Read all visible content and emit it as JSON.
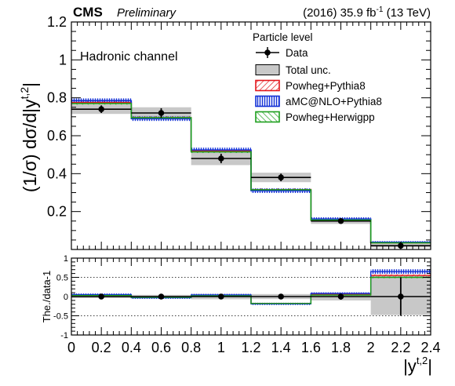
{
  "header": {
    "experiment": "CMS",
    "status": "Preliminary",
    "lumi_prefix": "(2016) 35.9 fb",
    "lumi_exp": "-1",
    "lumi_suffix": " (13 TeV)"
  },
  "channel_label": "Hadronic channel",
  "legend": {
    "title": "Particle level",
    "entries": [
      {
        "key": "data",
        "label": "Data"
      },
      {
        "key": "total_unc",
        "label": "Total unc."
      },
      {
        "key": "powheg_pythia8",
        "label": "Powheg+Pythia8"
      },
      {
        "key": "amcatnlo_pythia8",
        "label": "aMC@NLO+Pythia8"
      },
      {
        "key": "powheg_herwigpp",
        "label": "Powheg+Herwigpp"
      }
    ]
  },
  "colors": {
    "data": "#000000",
    "total_unc": "#c8c8c8",
    "powheg_pythia8": "#e3161c",
    "amcatnlo_pythia8": "#1230d6",
    "powheg_herwigpp": "#1c9e1c"
  },
  "chart_data": {
    "type": "line",
    "x_label_main": "|y",
    "x_label_sup": "t,2",
    "x_label_end": "|",
    "y_label_main": "(1/σ) dσ/d|y",
    "y_label_sup": "t,2",
    "y_label_end": "|",
    "ratio_ylabel": "The./data-1",
    "bin_edges": [
      0,
      0.4,
      0.8,
      1.2,
      1.6,
      2.0,
      2.4
    ],
    "xlim": [
      0,
      2.4
    ],
    "x_ticks": [
      "0",
      "0.2",
      "0.4",
      "0.6",
      "0.8",
      "1",
      "1.2",
      "1.4",
      "1.6",
      "1.8",
      "2",
      "2.2",
      "2.4"
    ],
    "ylim": [
      0,
      1.2
    ],
    "y_ticks": [
      "0.2",
      "0.4",
      "0.6",
      "0.8",
      "1",
      "1.2"
    ],
    "ratio_ylim": [
      -1,
      1
    ],
    "ratio_ticks": [
      "-1",
      "-0.5",
      "0",
      "0.5",
      "1"
    ],
    "data": {
      "x": [
        0.2,
        0.6,
        1.0,
        1.4,
        1.8,
        2.2
      ],
      "y": [
        0.74,
        0.72,
        0.48,
        0.38,
        0.15,
        0.02
      ],
      "stat_err": [
        0.02,
        0.025,
        0.025,
        0.02,
        0.012,
        0.01
      ]
    },
    "total_unc": {
      "low": [
        0.715,
        0.685,
        0.445,
        0.355,
        0.135,
        0.01
      ],
      "high": [
        0.765,
        0.75,
        0.515,
        0.405,
        0.165,
        0.03
      ]
    },
    "series": [
      {
        "name": "Powheg+Pythia8",
        "values": [
          0.775,
          0.695,
          0.52,
          0.315,
          0.155,
          0.035
        ],
        "band_halfwidth": [
          0.008,
          0.008,
          0.008,
          0.008,
          0.006,
          0.004
        ],
        "ratio": [
          0.04,
          -0.02,
          0.03,
          -0.18,
          0.06,
          0.55
        ],
        "ratio_halfwidth": [
          0.015,
          0.015,
          0.015,
          0.015,
          0.015,
          0.03
        ]
      },
      {
        "name": "aMC@NLO+Pythia8",
        "values": [
          0.785,
          0.69,
          0.525,
          0.31,
          0.16,
          0.038
        ],
        "band_halfwidth": [
          0.012,
          0.012,
          0.012,
          0.012,
          0.01,
          0.006
        ],
        "ratio": [
          0.05,
          -0.03,
          0.04,
          -0.19,
          0.08,
          0.65
        ],
        "ratio_halfwidth": [
          0.03,
          0.03,
          0.03,
          0.03,
          0.03,
          0.06
        ]
      },
      {
        "name": "Powheg+Herwigpp",
        "values": [
          0.77,
          0.695,
          0.515,
          0.315,
          0.155,
          0.035
        ],
        "band_halfwidth": [
          0.006,
          0.006,
          0.006,
          0.006,
          0.005,
          0.004
        ],
        "ratio": [
          0.03,
          -0.02,
          0.02,
          -0.18,
          0.04,
          0.5
        ],
        "ratio_halfwidth": [
          0.012,
          0.012,
          0.012,
          0.012,
          0.012,
          0.025
        ]
      }
    ],
    "ratio": {
      "data_err": [
        0.03,
        0.035,
        0.05,
        0.05,
        0.08,
        0.5
      ],
      "total_unc_low": [
        -0.04,
        -0.045,
        -0.07,
        -0.065,
        -0.1,
        -0.48
      ],
      "total_unc_high": [
        0.04,
        0.045,
        0.07,
        0.065,
        0.1,
        0.55
      ]
    }
  }
}
